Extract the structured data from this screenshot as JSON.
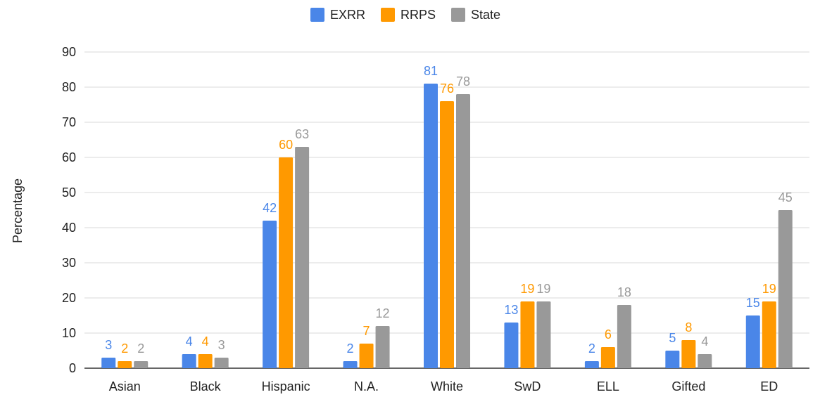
{
  "chart_data": {
    "type": "bar",
    "title": "",
    "xlabel": "",
    "ylabel": "Percentage",
    "ylim": [
      0,
      90
    ],
    "yticks": [
      0,
      10,
      20,
      30,
      40,
      50,
      60,
      70,
      80,
      90
    ],
    "grid": true,
    "legend_position": "top-center",
    "categories": [
      "Asian",
      "Black",
      "Hispanic",
      "N.A.",
      "White",
      "SwD",
      "ELL",
      "Gifted",
      "ED"
    ],
    "series": [
      {
        "name": "EXRR",
        "color": "#4a86e8",
        "values": [
          3,
          4,
          42,
          2,
          81,
          13,
          2,
          5,
          15
        ]
      },
      {
        "name": "RRPS",
        "color": "#ff9900",
        "values": [
          2,
          4,
          60,
          7,
          76,
          19,
          6,
          8,
          19
        ]
      },
      {
        "name": "State",
        "color": "#999999",
        "values": [
          2,
          3,
          63,
          12,
          78,
          19,
          18,
          4,
          45
        ]
      }
    ]
  }
}
